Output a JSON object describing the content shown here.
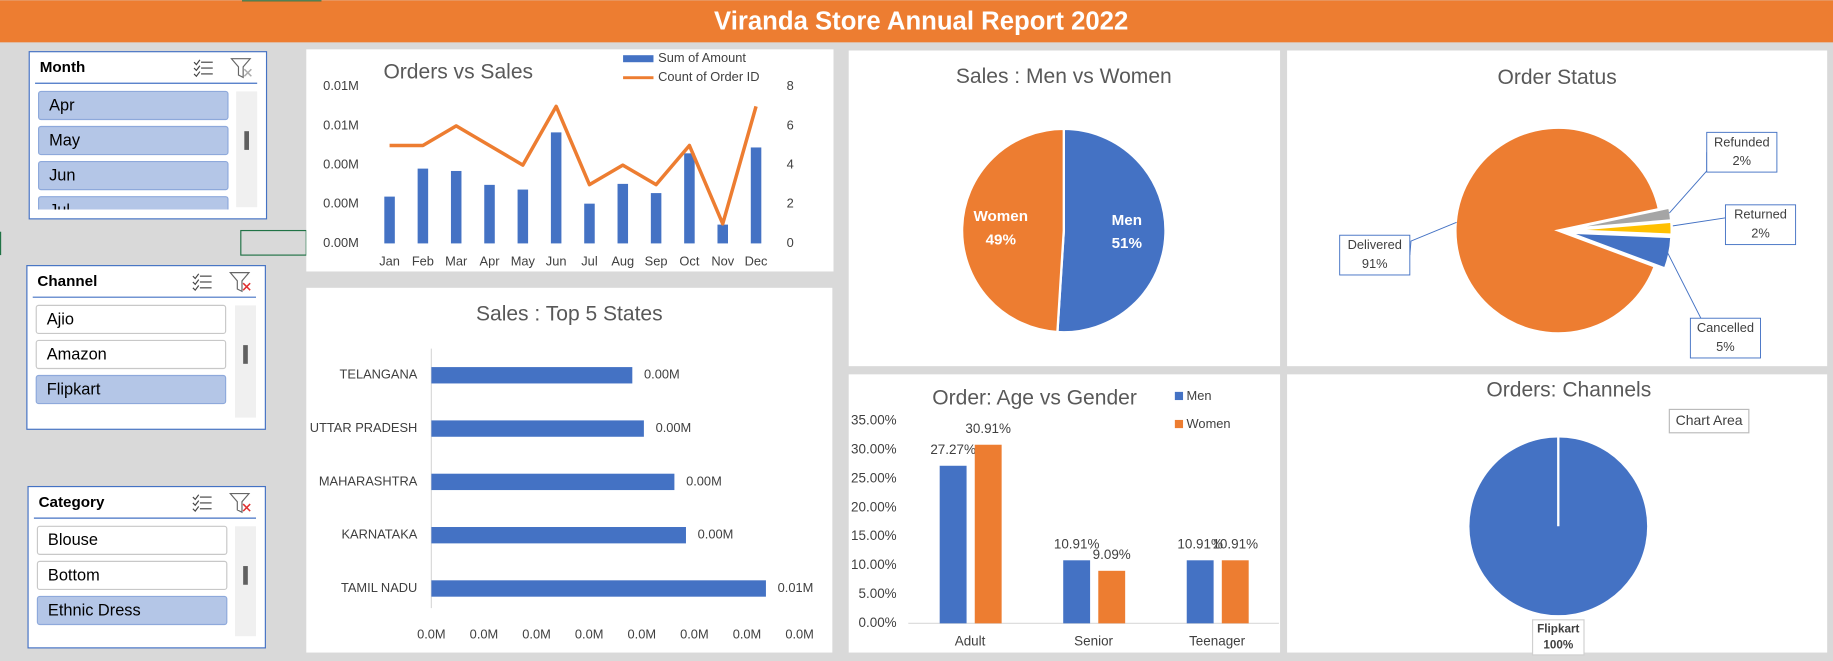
{
  "title": "Viranda Store Annual Report 2022",
  "tooltip": "Chart Area",
  "slicers": [
    {
      "title": "Month",
      "items": [
        {
          "label": "Apr",
          "selected": true
        },
        {
          "label": "May",
          "selected": true
        },
        {
          "label": "Jun",
          "selected": true
        },
        {
          "label": "Jul",
          "selected": true
        }
      ]
    },
    {
      "title": "Channel",
      "items": [
        {
          "label": "Ajio",
          "selected": false
        },
        {
          "label": "Amazon",
          "selected": false
        },
        {
          "label": "Flipkart",
          "selected": true
        }
      ]
    },
    {
      "title": "Category",
      "items": [
        {
          "label": "Blouse",
          "selected": false
        },
        {
          "label": "Bottom",
          "selected": false
        },
        {
          "label": "Ethnic Dress",
          "selected": true
        }
      ]
    }
  ],
  "chart_data": [
    {
      "type": "combo",
      "title": "Orders vs Sales",
      "categories": [
        "Jan",
        "Feb",
        "Mar",
        "Apr",
        "May",
        "Jun",
        "Jul",
        "Aug",
        "Sep",
        "Oct",
        "Nov",
        "Dec"
      ],
      "series": [
        {
          "name": "Sum of Amount",
          "type": "bar",
          "color": "#4472c4",
          "values": [
            2390,
            3820,
            3700,
            2990,
            2750,
            5670,
            2030,
            3040,
            2570,
            4600,
            960,
            4900
          ]
        },
        {
          "name": "Count of Order ID",
          "type": "line",
          "color": "#ed7d31",
          "axis": "y2",
          "values": [
            5,
            5,
            6,
            5,
            4,
            7,
            3,
            4,
            3,
            5,
            1,
            7
          ]
        }
      ],
      "ylim": [
        0,
        8000
      ],
      "yticks": [
        {
          "value": 0,
          "label": "0.00M"
        },
        {
          "value": 2000,
          "label": "0.00M"
        },
        {
          "value": 4000,
          "label": "0.00M"
        },
        {
          "value": 6000,
          "label": "0.01M"
        },
        {
          "value": 8000,
          "label": "0.01M"
        }
      ],
      "y2lim": [
        0,
        8
      ],
      "y2ticks": [
        0,
        2,
        4,
        6,
        8
      ]
    },
    {
      "type": "hbar",
      "title": "Sales : Top 5 States",
      "categories": [
        "TELANGANA",
        "UTTAR PRADESH",
        "MAHARASHTRA",
        "KARNATAKA",
        "TAMIL NADU"
      ],
      "values": [
        3820,
        4040,
        4620,
        4840,
        6360
      ],
      "value_labels": [
        "0.00M",
        "0.00M",
        "0.00M",
        "0.00M",
        "0.01M"
      ],
      "color": "#4472c4",
      "xlim": [
        0,
        7000
      ],
      "xticks": [
        {
          "value": 0,
          "label": "0.0M"
        },
        {
          "value": 1000,
          "label": "0.0M"
        },
        {
          "value": 2000,
          "label": "0.0M"
        },
        {
          "value": 3000,
          "label": "0.0M"
        },
        {
          "value": 4000,
          "label": "0.0M"
        },
        {
          "value": 5000,
          "label": "0.0M"
        },
        {
          "value": 6000,
          "label": "0.0M"
        },
        {
          "value": 7000,
          "label": "0.0M"
        }
      ]
    },
    {
      "type": "pie",
      "title": "Sales : Men vs Women",
      "categories": [
        "Men",
        "Women"
      ],
      "values": [
        51,
        49
      ],
      "value_labels": [
        "51%",
        "49%"
      ],
      "colors": [
        "#4472c4",
        "#ed7d31"
      ]
    },
    {
      "type": "pie",
      "title": "Order Status",
      "categories": [
        "Refunded",
        "Returned",
        "Cancelled",
        "Delivered"
      ],
      "values": [
        2,
        2,
        5,
        91
      ],
      "value_labels": [
        "2%",
        "2%",
        "5%",
        "91%"
      ],
      "colors": [
        "#a5a5a5",
        "#ffc000",
        "#4472c4",
        "#ed7d31"
      ]
    },
    {
      "type": "groupbar",
      "title": "Order: Age vs Gender",
      "categories": [
        "Adult",
        "Senior",
        "Teenager"
      ],
      "series": [
        {
          "name": "Men",
          "color": "#4472c4",
          "values": [
            27.27,
            10.91,
            10.91
          ],
          "value_labels": [
            "27.27%",
            "10.91%",
            "10.91%"
          ]
        },
        {
          "name": "Women",
          "color": "#ed7d31",
          "values": [
            30.91,
            9.09,
            10.91
          ],
          "value_labels": [
            "30.91%",
            "9.09%",
            "10.91%"
          ]
        }
      ],
      "ylim": [
        0,
        35
      ],
      "yticks": [
        {
          "value": 0,
          "label": "0.00%"
        },
        {
          "value": 5,
          "label": "5.00%"
        },
        {
          "value": 10,
          "label": "10.00%"
        },
        {
          "value": 15,
          "label": "15.00%"
        },
        {
          "value": 20,
          "label": "20.00%"
        },
        {
          "value": 25,
          "label": "25.00%"
        },
        {
          "value": 30,
          "label": "30.00%"
        },
        {
          "value": 35,
          "label": "35.00%"
        }
      ]
    },
    {
      "type": "pie",
      "title": "Orders: Channels",
      "categories": [
        "Flipkart"
      ],
      "values": [
        100
      ],
      "value_labels": [
        "100%"
      ],
      "colors": [
        "#4472c4"
      ]
    }
  ]
}
